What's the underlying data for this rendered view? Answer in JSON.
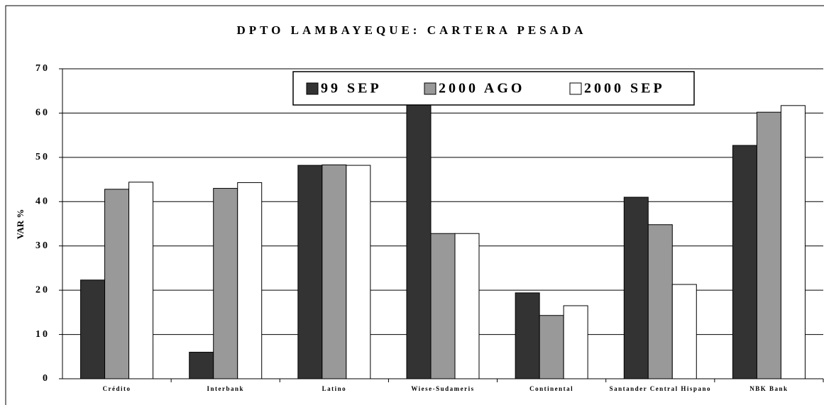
{
  "chart_data": {
    "type": "bar",
    "title": "DPTO LAMBAYEQUE: CARTERA PESADA",
    "y_label": "VAR %",
    "categories": [
      "Crédito",
      "Interbank",
      "Latino",
      "Wiese-Sudameris",
      "Continental",
      "Santander Central Hispano",
      "NBK Bank"
    ],
    "series": [
      {
        "name": "99 SEP",
        "color": "#333333",
        "values": [
          22.3,
          6.0,
          48.2,
          65,
          19.4,
          41.0,
          52.7
        ]
      },
      {
        "name": "2000 AGO",
        "color": "#999999",
        "values": [
          42.8,
          43.0,
          48.3,
          32.8,
          14.3,
          34.8,
          60.2
        ]
      },
      {
        "name": "2000 SEP",
        "color": "#ffffff",
        "values": [
          44.4,
          44.3,
          48.2,
          32.8,
          16.5,
          21.3,
          61.7
        ]
      }
    ],
    "ylim": [
      0,
      70
    ],
    "yticks": [
      0,
      10,
      20,
      30,
      40,
      50,
      60,
      70
    ],
    "grid": true,
    "legend": "top"
  }
}
